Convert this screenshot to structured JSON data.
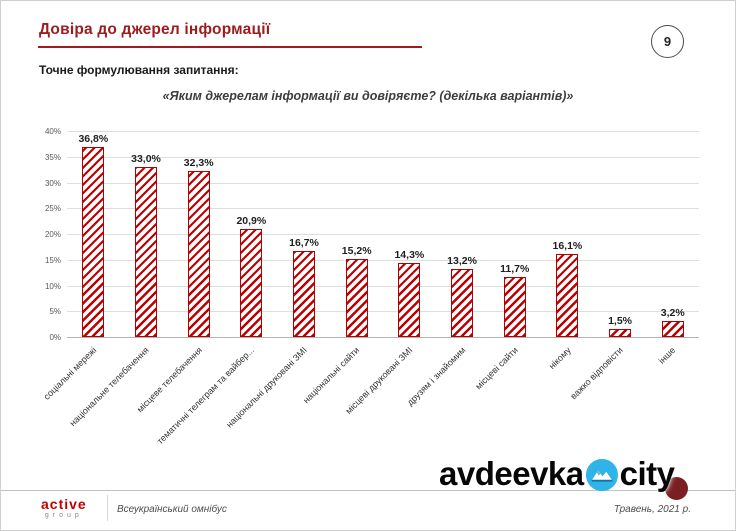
{
  "header": {
    "title": "Довіра до джерел інформації",
    "page_number": "9",
    "question_label": "Точне формулювання запитання:",
    "question": "«Яким джерелам інформації ви довіряєте? (декілька варіантів)»"
  },
  "chart_data": {
    "type": "bar",
    "title": "Довіра до джерел інформації",
    "categories": [
      "соціальні мережі",
      "національне телебачення",
      "місцеве телебачення",
      "тематичні телеграм та вайбер...",
      "національні друковані ЗМІ",
      "національні сайти",
      "місцеві друковані ЗМІ",
      "друзям і знайомим",
      "місцеві сайти",
      "нікому",
      "важко відповісти",
      "інше"
    ],
    "values": [
      36.8,
      33.0,
      32.3,
      20.9,
      16.7,
      15.2,
      14.3,
      13.2,
      11.7,
      16.1,
      1.5,
      3.2
    ],
    "value_labels": [
      "36,8%",
      "33,0%",
      "32,3%",
      "20,9%",
      "16,7%",
      "15,2%",
      "14,3%",
      "13,2%",
      "11,7%",
      "16,1%",
      "1,5%",
      "3,2%"
    ],
    "xlabel": "",
    "ylabel": "",
    "ylim": [
      0,
      40
    ],
    "ytick_step": 5,
    "ytick_labels": [
      "0%",
      "5%",
      "10%",
      "15%",
      "20%",
      "25%",
      "30%",
      "35%",
      "40%"
    ],
    "grid": true,
    "legend": false,
    "bar_color": "#c00000",
    "bar_fill": "diagonal-hatch"
  },
  "footer": {
    "logo_top": "active",
    "logo_bottom": "group",
    "survey_name": "Всеукраїнський омнібус",
    "date": "Травень, 2021 р."
  },
  "watermark": {
    "part1": "avdeevka",
    "part2": "city"
  },
  "colors": {
    "accent_red": "#9e1b1e",
    "bar_red": "#c00000",
    "maroon_dot": "#7a2022",
    "logo_blue": "#2fb4e8"
  }
}
